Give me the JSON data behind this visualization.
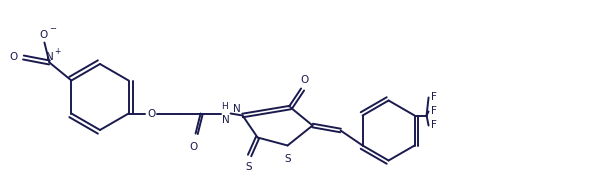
{
  "bg_color": "#ffffff",
  "line_color": "#1a1a4e",
  "line_width": 1.4,
  "figsize": [
    5.94,
    1.94
  ],
  "dpi": 100,
  "xlim": [
    0,
    594
  ],
  "ylim": [
    0,
    194
  ]
}
